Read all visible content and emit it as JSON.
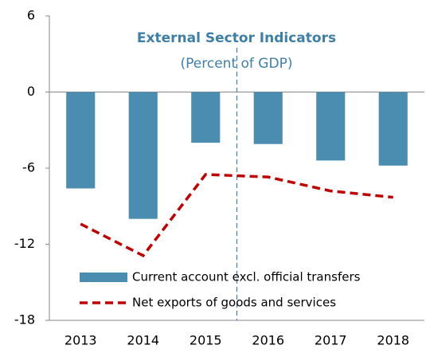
{
  "chart_data": {
    "type": "bar_line",
    "title": "External Sector Indicators",
    "subtitle": "(Percent of GDP)",
    "categories": [
      "2013",
      "2014",
      "2015",
      "2016",
      "2017",
      "2018"
    ],
    "series": [
      {
        "name": "Current account excl. official transfers",
        "type": "bar",
        "color": "#4a8db0",
        "values": [
          -7.6,
          -10.0,
          -4.0,
          -4.1,
          -5.4,
          -5.8
        ]
      },
      {
        "name": "Net exports of goods and services",
        "type": "line",
        "color": "#c00000",
        "values": [
          -10.4,
          -12.9,
          -6.5,
          -6.7,
          -7.8,
          -8.3
        ]
      }
    ],
    "ylim": [
      -18,
      6
    ],
    "yticks": [
      6,
      0,
      -6,
      -12,
      -18
    ],
    "grid": false,
    "legend": "lower left"
  }
}
